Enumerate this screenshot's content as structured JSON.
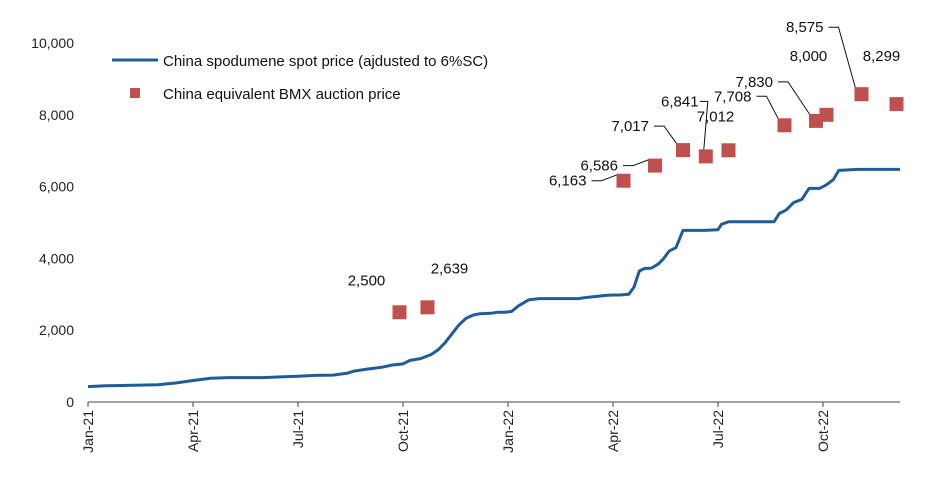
{
  "chart_data": {
    "type": "line",
    "title": "",
    "xlabel": "",
    "ylabel": "",
    "ylim": [
      0,
      10000
    ],
    "grid": false,
    "legend_position": "top-left",
    "x_ticks": [
      {
        "label": "Jan-21",
        "x": 0
      },
      {
        "label": "Apr-21",
        "x": 3
      },
      {
        "label": "Jul-21",
        "x": 6
      },
      {
        "label": "Oct-21",
        "x": 9
      },
      {
        "label": "Jan-22",
        "x": 12
      },
      {
        "label": "Apr-22",
        "x": 15
      },
      {
        "label": "Jul-22",
        "x": 18
      },
      {
        "label": "Oct-22",
        "x": 21
      }
    ],
    "y_ticks": [
      {
        "label": "0",
        "value": 0
      },
      {
        "label": "2,000",
        "value": 2000
      },
      {
        "label": "4,000",
        "value": 4000
      },
      {
        "label": "6,000",
        "value": 6000
      },
      {
        "label": "8,000",
        "value": 8000
      },
      {
        "label": "10,000",
        "value": 10000
      }
    ],
    "series": [
      {
        "name": "China spodumene spot price (ajdusted to 6%SC)",
        "kind": "line",
        "color": "#1f5c99",
        "points": [
          [
            0,
            430
          ],
          [
            0.5,
            450
          ],
          [
            1,
            460
          ],
          [
            1.5,
            470
          ],
          [
            2,
            480
          ],
          [
            2.5,
            530
          ],
          [
            3,
            600
          ],
          [
            3.5,
            660
          ],
          [
            4,
            680
          ],
          [
            4.5,
            680
          ],
          [
            5,
            680
          ],
          [
            5.5,
            700
          ],
          [
            6,
            720
          ],
          [
            6.5,
            740
          ],
          [
            7,
            750
          ],
          [
            7.4,
            800
          ],
          [
            7.6,
            860
          ],
          [
            8,
            920
          ],
          [
            8.4,
            970
          ],
          [
            8.7,
            1030
          ],
          [
            9,
            1060
          ],
          [
            9.2,
            1160
          ],
          [
            9.5,
            1210
          ],
          [
            9.8,
            1320
          ],
          [
            10,
            1450
          ],
          [
            10.2,
            1650
          ],
          [
            10.4,
            1900
          ],
          [
            10.6,
            2150
          ],
          [
            10.8,
            2330
          ],
          [
            11,
            2420
          ],
          [
            11.2,
            2460
          ],
          [
            11.5,
            2470
          ],
          [
            11.7,
            2500
          ],
          [
            11.9,
            2500
          ],
          [
            12.1,
            2520
          ],
          [
            12.3,
            2680
          ],
          [
            12.6,
            2850
          ],
          [
            12.9,
            2880
          ],
          [
            13,
            2880
          ],
          [
            13.5,
            2880
          ],
          [
            14,
            2880
          ],
          [
            14.3,
            2920
          ],
          [
            14.6,
            2950
          ],
          [
            14.8,
            2970
          ],
          [
            15,
            2980
          ],
          [
            15.2,
            2980
          ],
          [
            15.45,
            3000
          ],
          [
            15.6,
            3200
          ],
          [
            15.75,
            3650
          ],
          [
            15.9,
            3720
          ],
          [
            16.1,
            3730
          ],
          [
            16.3,
            3850
          ],
          [
            16.45,
            4000
          ],
          [
            16.6,
            4200
          ],
          [
            16.8,
            4300
          ],
          [
            17,
            4780
          ],
          [
            17.3,
            4780
          ],
          [
            17.6,
            4780
          ],
          [
            18,
            4800
          ],
          [
            18.1,
            4950
          ],
          [
            18.3,
            5020
          ],
          [
            19,
            5020
          ],
          [
            19.6,
            5020
          ],
          [
            19.75,
            5250
          ],
          [
            19.95,
            5350
          ],
          [
            20.15,
            5550
          ],
          [
            20.4,
            5650
          ],
          [
            20.6,
            5950
          ],
          [
            20.9,
            5950
          ],
          [
            21.1,
            6050
          ],
          [
            21.3,
            6200
          ],
          [
            21.45,
            6450
          ],
          [
            22,
            6480
          ],
          [
            23.2,
            6480
          ]
        ]
      },
      {
        "name": "China equivalent BMX auction price",
        "kind": "scatter",
        "color": "#c0504d",
        "points": [
          {
            "x": 8.9,
            "value": 2500,
            "label": "2,500"
          },
          {
            "x": 9.7,
            "value": 2639,
            "label": "2,639"
          },
          {
            "x": 15.3,
            "value": 6163,
            "label": "6,163"
          },
          {
            "x": 16.2,
            "value": 6586,
            "label": "6,586"
          },
          {
            "x": 17.0,
            "value": 7017,
            "label": "7,017"
          },
          {
            "x": 17.65,
            "value": 6841,
            "label": "6,841"
          },
          {
            "x": 18.3,
            "value": 7012,
            "label": "7,012"
          },
          {
            "x": 19.9,
            "value": 7708,
            "label": "7,708"
          },
          {
            "x": 20.8,
            "value": 7830,
            "label": "7,830"
          },
          {
            "x": 21.1,
            "value": 8000,
            "label": "8,000"
          },
          {
            "x": 22.1,
            "value": 8575,
            "label": "8,575"
          },
          {
            "x": 23.1,
            "value": 8299,
            "label": "8,299"
          }
        ]
      }
    ]
  }
}
